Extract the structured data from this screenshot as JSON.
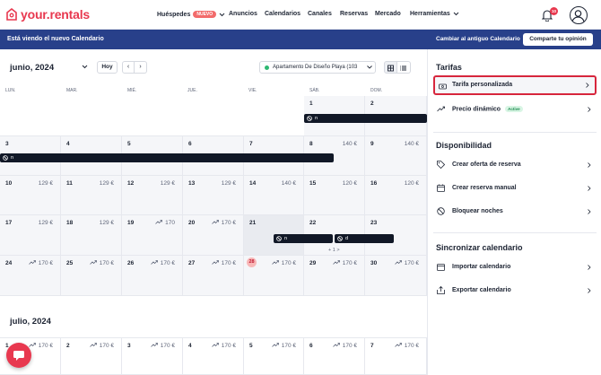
{
  "brand": {
    "logo_text": "your.rentals",
    "accent": "#e8384f",
    "banner_bg": "#28408a"
  },
  "nav": {
    "items": [
      "Huéspedes",
      "Anuncios",
      "Calendarios",
      "Canales",
      "Reservas",
      "Mercado",
      "Herramientas"
    ],
    "new_badge": "NUEVO",
    "notifications_count": "10"
  },
  "banner": {
    "text": "Está viendo el nuevo Calendario",
    "switch_link": "Cambiar al antiguo Calendario",
    "feedback_button": "Comparte tu opinión"
  },
  "toolbar": {
    "month": "junio, 2024",
    "today_button": "Hoy",
    "prev": "‹",
    "next": "›",
    "property": "Apartamento De Diseño Playa (103"
  },
  "calendar": {
    "weekdays": [
      "LUN.",
      "MAR.",
      "MIÉ.",
      "JUE.",
      "VIE.",
      "SÁB.",
      "DOM."
    ],
    "week1": {
      "days": [
        "1",
        "2"
      ],
      "bar_label": "n"
    },
    "week2": {
      "days": [
        "3",
        "4",
        "5",
        "6",
        "7",
        "8",
        "9"
      ],
      "prices": [
        "",
        "",
        "",
        "",
        "",
        "140 €",
        "140 €"
      ],
      "bar_label": "n"
    },
    "week3": {
      "days": [
        "10",
        "11",
        "12",
        "13",
        "14",
        "15",
        "16"
      ],
      "prices": [
        "129 €",
        "129 €",
        "129 €",
        "129 €",
        "140 €",
        "120 €",
        "120 €"
      ]
    },
    "week4": {
      "days": [
        "17",
        "18",
        "19",
        "20",
        "21",
        "22",
        "23"
      ],
      "prices": [
        "129 €",
        "129 €",
        "170",
        "170 €",
        "",
        "",
        ""
      ],
      "bar1_label": "n",
      "bar2_label": "d",
      "more": "+ 1 >"
    },
    "week5": {
      "days": [
        "24",
        "25",
        "26",
        "27",
        "28",
        "29",
        "30"
      ],
      "prices": [
        "170 €",
        "170 €",
        "170 €",
        "170 €",
        "170 €",
        "170 €",
        "170 €"
      ]
    },
    "month2_title": "julio, 2024",
    "week6": {
      "days": [
        "1",
        "2",
        "3",
        "4",
        "5",
        "6",
        "7"
      ],
      "prices": [
        "170 €",
        "170 €",
        "170 €",
        "170 €",
        "170 €",
        "170 €",
        "170 €"
      ]
    }
  },
  "panel": {
    "tarifas_title": "Tarifas",
    "tarifa_personalizada": "Tarifa personalizada",
    "precio_dinamico": "Precio dinámico",
    "active_badge": "Active",
    "disponibilidad_title": "Disponibilidad",
    "crear_oferta": "Crear oferta de reserva",
    "crear_reserva": "Crear reserva manual",
    "bloquear": "Bloquear noches",
    "sincronizar_title": "Sincronizar calendario",
    "importar": "Importar calendario",
    "exportar": "Exportar calendario"
  }
}
